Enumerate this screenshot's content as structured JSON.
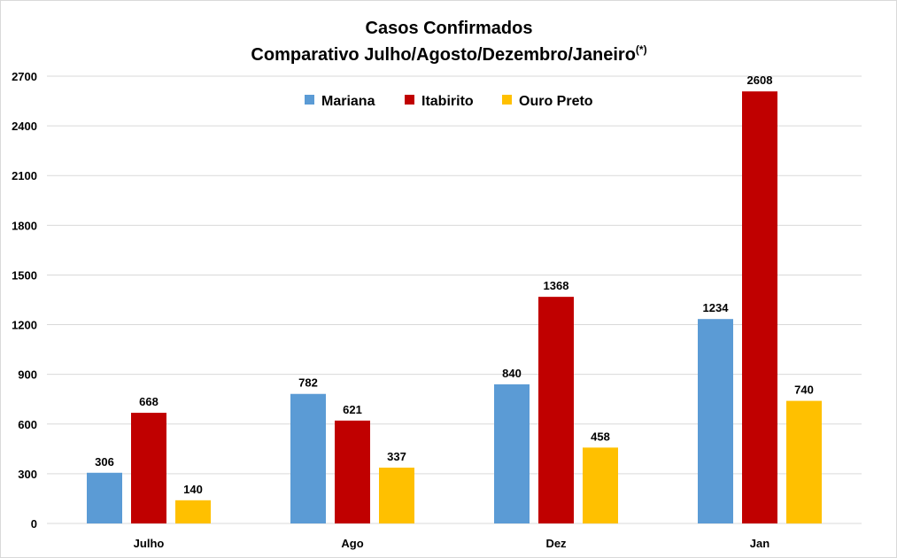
{
  "chart_data": {
    "type": "bar",
    "title": "Casos Confirmados",
    "subtitle": "Comparativo Julho/Agosto/Dezembro/Janeiro",
    "subtitle_superscript": "(*)",
    "xlabel": "",
    "ylabel": "",
    "categories": [
      "Julho",
      "Ago",
      "Dez",
      "Jan"
    ],
    "series": [
      {
        "name": "Mariana",
        "color": "#5b9bd5",
        "values": [
          306,
          782,
          840,
          1234
        ]
      },
      {
        "name": "Itabirito",
        "color": "#c00000",
        "values": [
          668,
          621,
          1368,
          2608
        ]
      },
      {
        "name": "Ouro Preto",
        "color": "#ffc000",
        "values": [
          140,
          337,
          458,
          740
        ]
      }
    ],
    "ylim": [
      0,
      2700
    ],
    "yticks": [
      "0",
      "300",
      "600",
      "900",
      "1200",
      "1500",
      "1800",
      "2100",
      "2400",
      "2700"
    ],
    "grid": true,
    "legend_position": "top-center"
  }
}
